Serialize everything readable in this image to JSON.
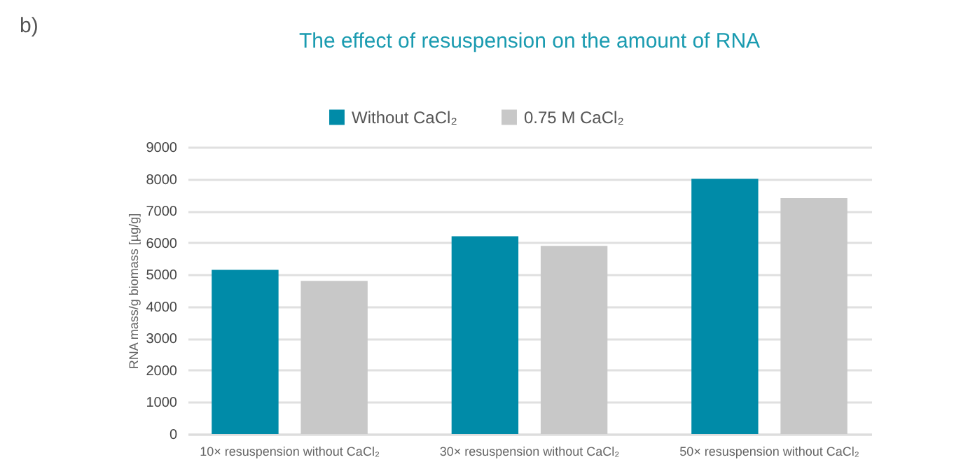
{
  "chart_data": {
    "type": "bar",
    "title": "The effect of resuspension on the amount of RNA",
    "ylabel": "RNA mass/g biomass [µg/g]",
    "annotations": [
      "b)"
    ],
    "categories": [
      "10× resuspension without CaCl₂",
      "30× resuspension without CaCl₂",
      "50× resuspension without CaCl₂"
    ],
    "series": [
      {
        "name": "Without CaCl₂",
        "color": "#008ba8",
        "values": [
          5150,
          6200,
          8000
        ]
      },
      {
        "name": "0.75 M CaCl₂",
        "color": "#c8c8c8",
        "values": [
          4800,
          5900,
          7400
        ]
      }
    ],
    "ylim": [
      0,
      9000
    ],
    "yticks": [
      0,
      1000,
      2000,
      3000,
      4000,
      5000,
      6000,
      7000,
      8000,
      9000
    ],
    "grid": "y",
    "legend": "top"
  }
}
